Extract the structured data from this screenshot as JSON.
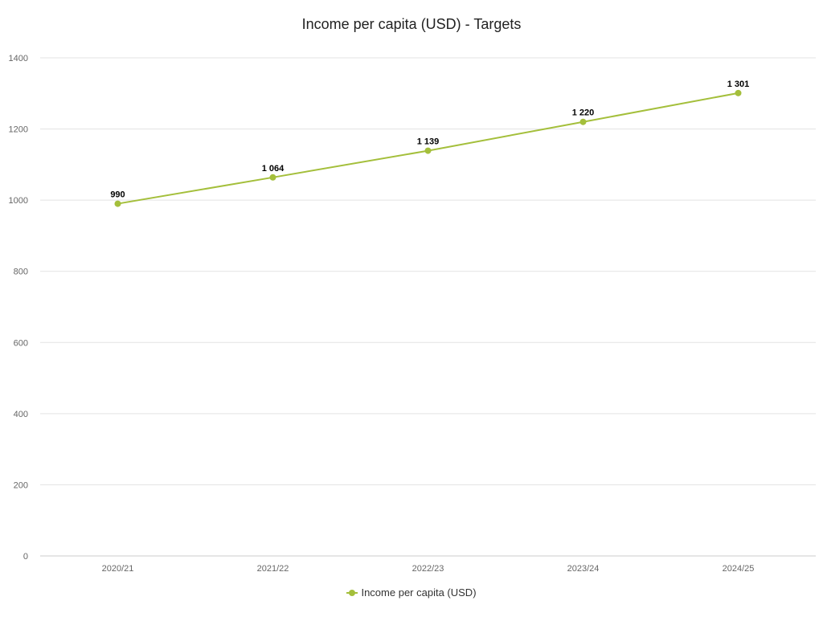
{
  "chart_data": {
    "type": "line",
    "title": "Income per capita (USD) - Targets",
    "xlabel": "",
    "ylabel": "",
    "categories": [
      "2020/21",
      "2021/22",
      "2022/23",
      "2023/24",
      "2024/25"
    ],
    "series": [
      {
        "name": "Income per capita (USD)",
        "values": [
          990,
          1064,
          1139,
          1220,
          1301
        ],
        "labels": [
          "990",
          "1 064",
          "1 139",
          "1 220",
          "1 301"
        ],
        "color": "#a4bf3b"
      }
    ],
    "ylim": [
      0,
      1400
    ],
    "yticks": [
      0,
      200,
      400,
      600,
      800,
      1000,
      1200,
      1400
    ],
    "ytick_labels": [
      "0",
      "200",
      "400",
      "600",
      "800",
      "1000",
      "1200",
      "1400"
    ],
    "grid": true,
    "legend_position": "bottom-center"
  }
}
